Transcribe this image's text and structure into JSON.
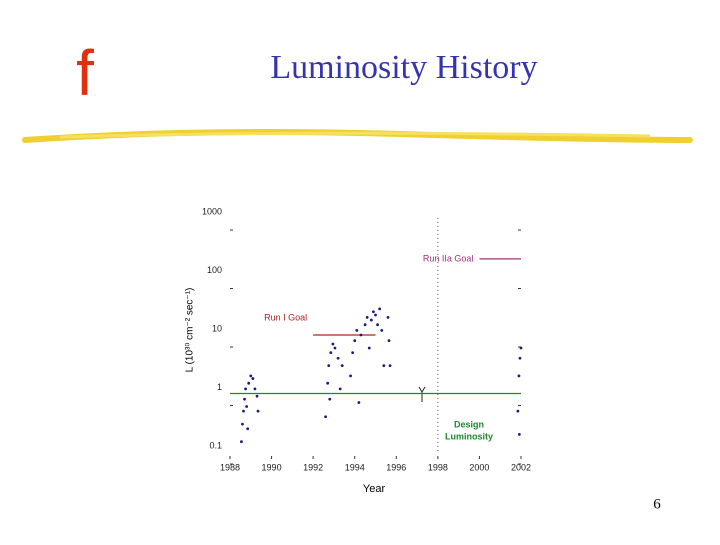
{
  "slide": {
    "logo": "f",
    "title": "Luminosity History",
    "page_number": "6"
  },
  "chart_data": {
    "type": "scatter",
    "xlabel": "Year",
    "ylabel": "L (10³⁰ cm⁻² sec⁻¹)",
    "xlim": [
      1988,
      2002
    ],
    "ylim": [
      0.1,
      1000
    ],
    "log_y": true,
    "xticks": [
      1988,
      1990,
      1992,
      1994,
      1996,
      1998,
      2000,
      2002
    ],
    "yticks": [
      0.1,
      1,
      10,
      100,
      1000
    ],
    "divider_x": 1998,
    "reference_lines": [
      {
        "label": "Run IIa Goal",
        "y": 200,
        "x": [
          2000,
          2002
        ],
        "color": "#a0307a"
      },
      {
        "label": "Run I Goal",
        "y": 10,
        "x": [
          1992,
          1995
        ],
        "color": "#b02020"
      },
      {
        "label": [
          "Design",
          "Luminosity"
        ],
        "y": 1,
        "x": [
          1988,
          2002
        ],
        "color": "#1a8a2a"
      }
    ],
    "series": [
      {
        "color": "#1a1a80",
        "x": [
          1988.55,
          1988.6,
          1988.65,
          1988.7,
          1988.75,
          1988.8,
          1988.9,
          1989.0,
          1989.1,
          1989.2,
          1989.3,
          1989.35,
          1988.85,
          1992.6,
          1992.7,
          1992.75,
          1992.85,
          1992.95,
          1993.05,
          1993.2,
          1993.4,
          1993.3,
          1992.8,
          1993.8,
          1993.9,
          1994.0,
          1994.1,
          1994.3,
          1994.5,
          1994.6,
          1994.8,
          1994.9,
          1995.0,
          1995.1,
          1995.2,
          1995.3,
          1995.4,
          1994.2,
          1994.7,
          1995.6,
          1995.65,
          1995.7,
          2001.85,
          2001.9,
          2001.95,
          2002.0,
          2001.92
        ],
        "values": [
          0.15,
          0.3,
          0.5,
          0.8,
          1.2,
          0.6,
          1.5,
          2.0,
          1.8,
          1.2,
          0.9,
          0.5,
          0.25,
          0.4,
          1.5,
          3,
          5,
          7,
          6,
          4,
          3,
          1.2,
          0.8,
          2,
          5,
          8,
          12,
          10,
          15,
          20,
          18,
          25,
          22,
          15,
          28,
          12,
          3,
          0.7,
          6,
          20,
          8,
          3,
          0.5,
          2,
          4,
          6,
          0.2
        ]
      }
    ]
  }
}
